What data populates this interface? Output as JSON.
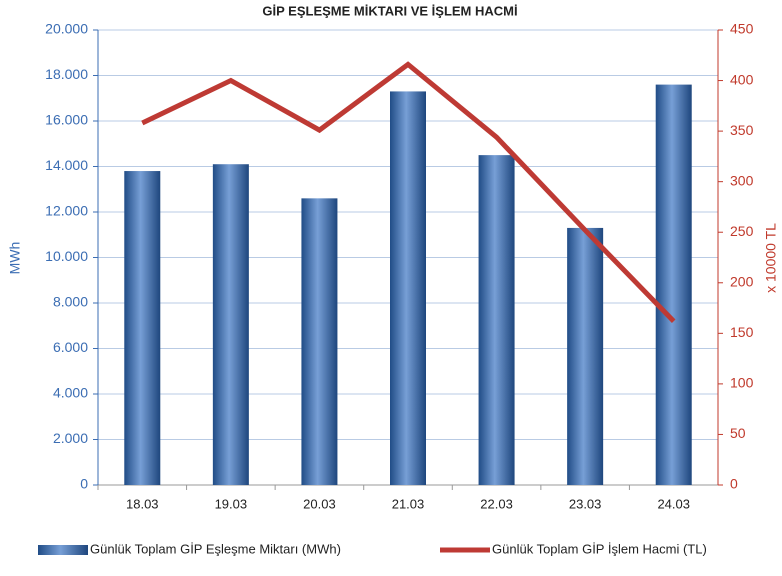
{
  "chart_data": {
    "type": "bar_line",
    "title": "GİP EŞLEŞME MİKTARI VE İŞLEM HACMİ",
    "categories": [
      "18.03",
      "19.03",
      "20.03",
      "21.03",
      "22.03",
      "23.03",
      "24.03"
    ],
    "series": [
      {
        "name": "Günlük Toplam GİP Eşleşme Miktarı (MWh)",
        "type": "bar",
        "color": "#2e6cc0",
        "values": [
          13800,
          14100,
          12600,
          17300,
          14500,
          11300,
          17600
        ]
      },
      {
        "name": "Günlük Toplam GİP İşlem Hacmi (TL)",
        "type": "line",
        "axis": "y2",
        "color": "#be3a34",
        "values": [
          358,
          400,
          351,
          416,
          344,
          252,
          162
        ]
      }
    ],
    "ylabel": "MWh",
    "y2label": "x 10000 TL",
    "ylim": [
      0,
      20000
    ],
    "yticks": [
      0,
      {
        "value": 2000,
        "label": "2.000"
      },
      {
        "value": 4000,
        "label": "4.000"
      },
      {
        "value": 6000,
        "label": "6.000"
      },
      {
        "value": 8000,
        "label": "8.000"
      },
      {
        "value": 10000,
        "label": "10.000"
      },
      {
        "value": 12000,
        "label": "12.000"
      },
      {
        "value": 14000,
        "label": "14.000"
      },
      {
        "value": 16000,
        "label": "16.000"
      },
      {
        "value": 18000,
        "label": "18.000"
      },
      {
        "value": 20000,
        "label": "20.000"
      }
    ],
    "y2lim": [
      0,
      450
    ],
    "y2ticks": [
      0,
      50,
      100,
      150,
      200,
      250,
      300,
      350,
      400,
      450
    ],
    "grid": true,
    "legend": "bottom"
  }
}
